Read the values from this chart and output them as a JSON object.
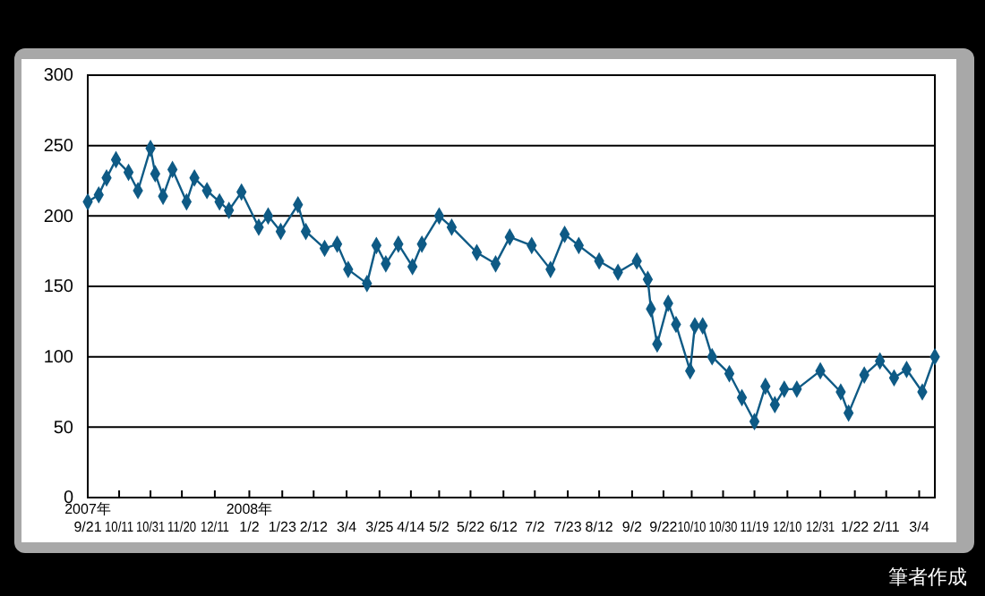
{
  "chart_data": {
    "type": "line",
    "marker": "diamond",
    "grid": "y",
    "color": "#0e5a85",
    "x": [
      "2007-09-21",
      "2007-09-28",
      "2007-10-03",
      "2007-10-09",
      "2007-10-17",
      "2007-10-23",
      "2007-10-31",
      "2007-11-03",
      "2007-11-08",
      "2007-11-14",
      "2007-11-23",
      "2007-11-28",
      "2007-12-06",
      "2007-12-14",
      "2007-12-20",
      "2007-12-28",
      "2008-01-08",
      "2008-01-14",
      "2008-01-22",
      "2008-02-02",
      "2008-02-07",
      "2008-02-19",
      "2008-02-27",
      "2008-03-05",
      "2008-03-17",
      "2008-03-23",
      "2008-03-29",
      "2008-04-06",
      "2008-04-15",
      "2008-04-21",
      "2008-05-02",
      "2008-05-10",
      "2008-05-26",
      "2008-06-07",
      "2008-06-16",
      "2008-06-30",
      "2008-07-12",
      "2008-07-21",
      "2008-07-30",
      "2008-08-12",
      "2008-08-24",
      "2008-09-05",
      "2008-09-12",
      "2008-09-14",
      "2008-09-18",
      "2008-09-25",
      "2008-09-30",
      "2008-10-09",
      "2008-10-12",
      "2008-10-17",
      "2008-10-23",
      "2008-11-03",
      "2008-11-11",
      "2008-11-19",
      "2008-11-26",
      "2008-12-02",
      "2008-12-08",
      "2008-12-16",
      "2008-12-31",
      "2009-01-13",
      "2009-01-18",
      "2009-01-28",
      "2009-02-07",
      "2009-02-16",
      "2009-02-24",
      "2009-03-06",
      "2009-03-14"
    ],
    "values": [
      210,
      215,
      227,
      240,
      231,
      218,
      248,
      230,
      214,
      233,
      210,
      227,
      218,
      210,
      204,
      217,
      192,
      200,
      189,
      208,
      189,
      177,
      180,
      162,
      152,
      179,
      166,
      180,
      164,
      180,
      200,
      192,
      174,
      166,
      185,
      179,
      162,
      187,
      179,
      168,
      160,
      168,
      155,
      134,
      109,
      138,
      123,
      90,
      122,
      122,
      100,
      88,
      71,
      54,
      79,
      66,
      77,
      77,
      90,
      75,
      60,
      87,
      97,
      85,
      91,
      75,
      100
    ],
    "xlim": [
      "2007-09-21",
      "2009-03-14"
    ],
    "xticks": [
      {
        "value": "2007-09-21",
        "label": "2007年\n9/21"
      },
      {
        "value": "2007-10-11",
        "label": "10/11"
      },
      {
        "value": "2007-10-31",
        "label": "10/31"
      },
      {
        "value": "2007-11-20",
        "label": "11/20"
      },
      {
        "value": "2007-12-11",
        "label": "12/11"
      },
      {
        "value": "2008-01-02",
        "label": "2008年\n1/2"
      },
      {
        "value": "2008-01-23",
        "label": "1/23"
      },
      {
        "value": "2008-02-12",
        "label": "2/12"
      },
      {
        "value": "2008-03-04",
        "label": "3/4"
      },
      {
        "value": "2008-03-25",
        "label": "3/25"
      },
      {
        "value": "2008-04-14",
        "label": "4/14"
      },
      {
        "value": "2008-05-02",
        "label": "5/2"
      },
      {
        "value": "2008-05-22",
        "label": "5/22"
      },
      {
        "value": "2008-06-12",
        "label": "6/12"
      },
      {
        "value": "2008-07-02",
        "label": "7/2"
      },
      {
        "value": "2008-07-23",
        "label": "7/23"
      },
      {
        "value": "2008-08-12",
        "label": "8/12"
      },
      {
        "value": "2008-09-02",
        "label": "9/2"
      },
      {
        "value": "2008-09-22",
        "label": "9/22"
      },
      {
        "value": "2008-10-10",
        "label": "10/10"
      },
      {
        "value": "2008-10-30",
        "label": "10/30"
      },
      {
        "value": "2008-11-19",
        "label": "11/19"
      },
      {
        "value": "2008-12-10",
        "label": "12/10"
      },
      {
        "value": "2008-12-31",
        "label": "12/31"
      },
      {
        "value": "2009-01-22",
        "label": "1/22"
      },
      {
        "value": "2009-02-11",
        "label": "2/11"
      },
      {
        "value": "2009-03-04",
        "label": "3/4"
      }
    ],
    "ylim": [
      0,
      300
    ],
    "yticks": [
      0,
      50,
      100,
      150,
      200,
      250,
      300
    ],
    "annotations": [
      "筆者作成"
    ]
  }
}
